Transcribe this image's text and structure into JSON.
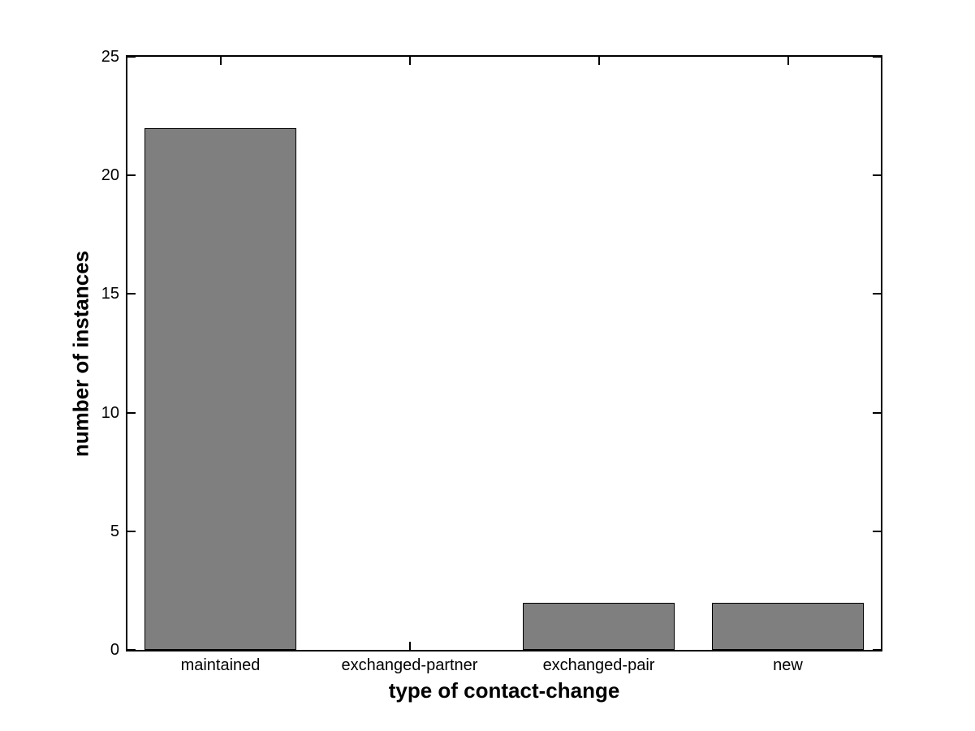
{
  "chart_data": {
    "type": "bar",
    "categories": [
      "maintained",
      "exchanged-partner",
      "exchanged-pair",
      "new"
    ],
    "values": [
      22,
      0,
      2,
      2
    ],
    "title": "",
    "xlabel": "type of contact-change",
    "ylabel": "number of instances",
    "ylim": [
      0,
      25
    ],
    "yticks": [
      0,
      5,
      10,
      15,
      20,
      25
    ],
    "bar_width_fraction": 0.8,
    "bar_color": "#7f7f7f",
    "bar_edge_color": "#000000",
    "axis_color": "#000000",
    "background_color": "#ffffff",
    "grid": false,
    "legend": "none",
    "tick_direction": "in",
    "box": true
  }
}
